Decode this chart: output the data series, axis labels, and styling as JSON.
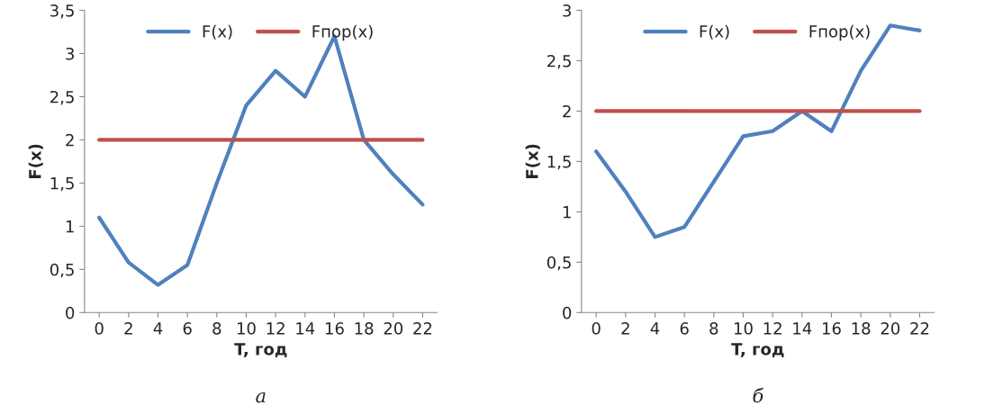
{
  "chart_data": [
    {
      "type": "line",
      "xlabel": "T, год",
      "ylabel": "F(x)",
      "annotations": [
        "а"
      ],
      "categories": [
        "0",
        "2",
        "4",
        "6",
        "8",
        "10",
        "12",
        "14",
        "16",
        "18",
        "20",
        "22"
      ],
      "series": [
        {
          "name": "F(x)",
          "color": "#4f81bd",
          "values": [
            1.1,
            0.58,
            0.32,
            0.55,
            1.5,
            2.4,
            2.8,
            2.5,
            3.2,
            2.0,
            1.6,
            1.25
          ]
        },
        {
          "name": "Fпор(x)",
          "color": "#c0504d",
          "values": [
            2,
            2,
            2,
            2,
            2,
            2,
            2,
            2,
            2,
            2,
            2,
            2
          ]
        }
      ],
      "ylim": [
        0,
        3.5
      ],
      "yticks": [
        0,
        {
          "value": 0.5,
          "label": "0,5"
        },
        1,
        {
          "value": 1.5,
          "label": "1,5"
        },
        2,
        {
          "value": 2.5,
          "label": "2,5"
        },
        3,
        {
          "value": 3.5,
          "label": "3,5"
        }
      ],
      "legend": "top",
      "grid": false
    },
    {
      "type": "line",
      "xlabel": "T, год",
      "ylabel": "F(x)",
      "annotations": [
        "б"
      ],
      "categories": [
        "0",
        "2",
        "4",
        "6",
        "8",
        "10",
        "12",
        "14",
        "16",
        "18",
        "20",
        "22"
      ],
      "series": [
        {
          "name": "F(x)",
          "color": "#4f81bd",
          "values": [
            1.6,
            1.2,
            0.75,
            0.85,
            1.3,
            1.75,
            1.8,
            2.0,
            1.8,
            2.4,
            2.85,
            2.8
          ]
        },
        {
          "name": "Fпор(x)",
          "color": "#c0504d",
          "values": [
            2,
            2,
            2,
            2,
            2,
            2,
            2,
            2,
            2,
            2,
            2,
            2
          ]
        }
      ],
      "ylim": [
        0,
        3
      ],
      "yticks": [
        0,
        {
          "value": 0.5,
          "label": "0,5"
        },
        1,
        {
          "value": 1.5,
          "label": "1,5"
        },
        2,
        {
          "value": 2.5,
          "label": "2,5"
        },
        3
      ],
      "legend": "top",
      "grid": false
    }
  ]
}
